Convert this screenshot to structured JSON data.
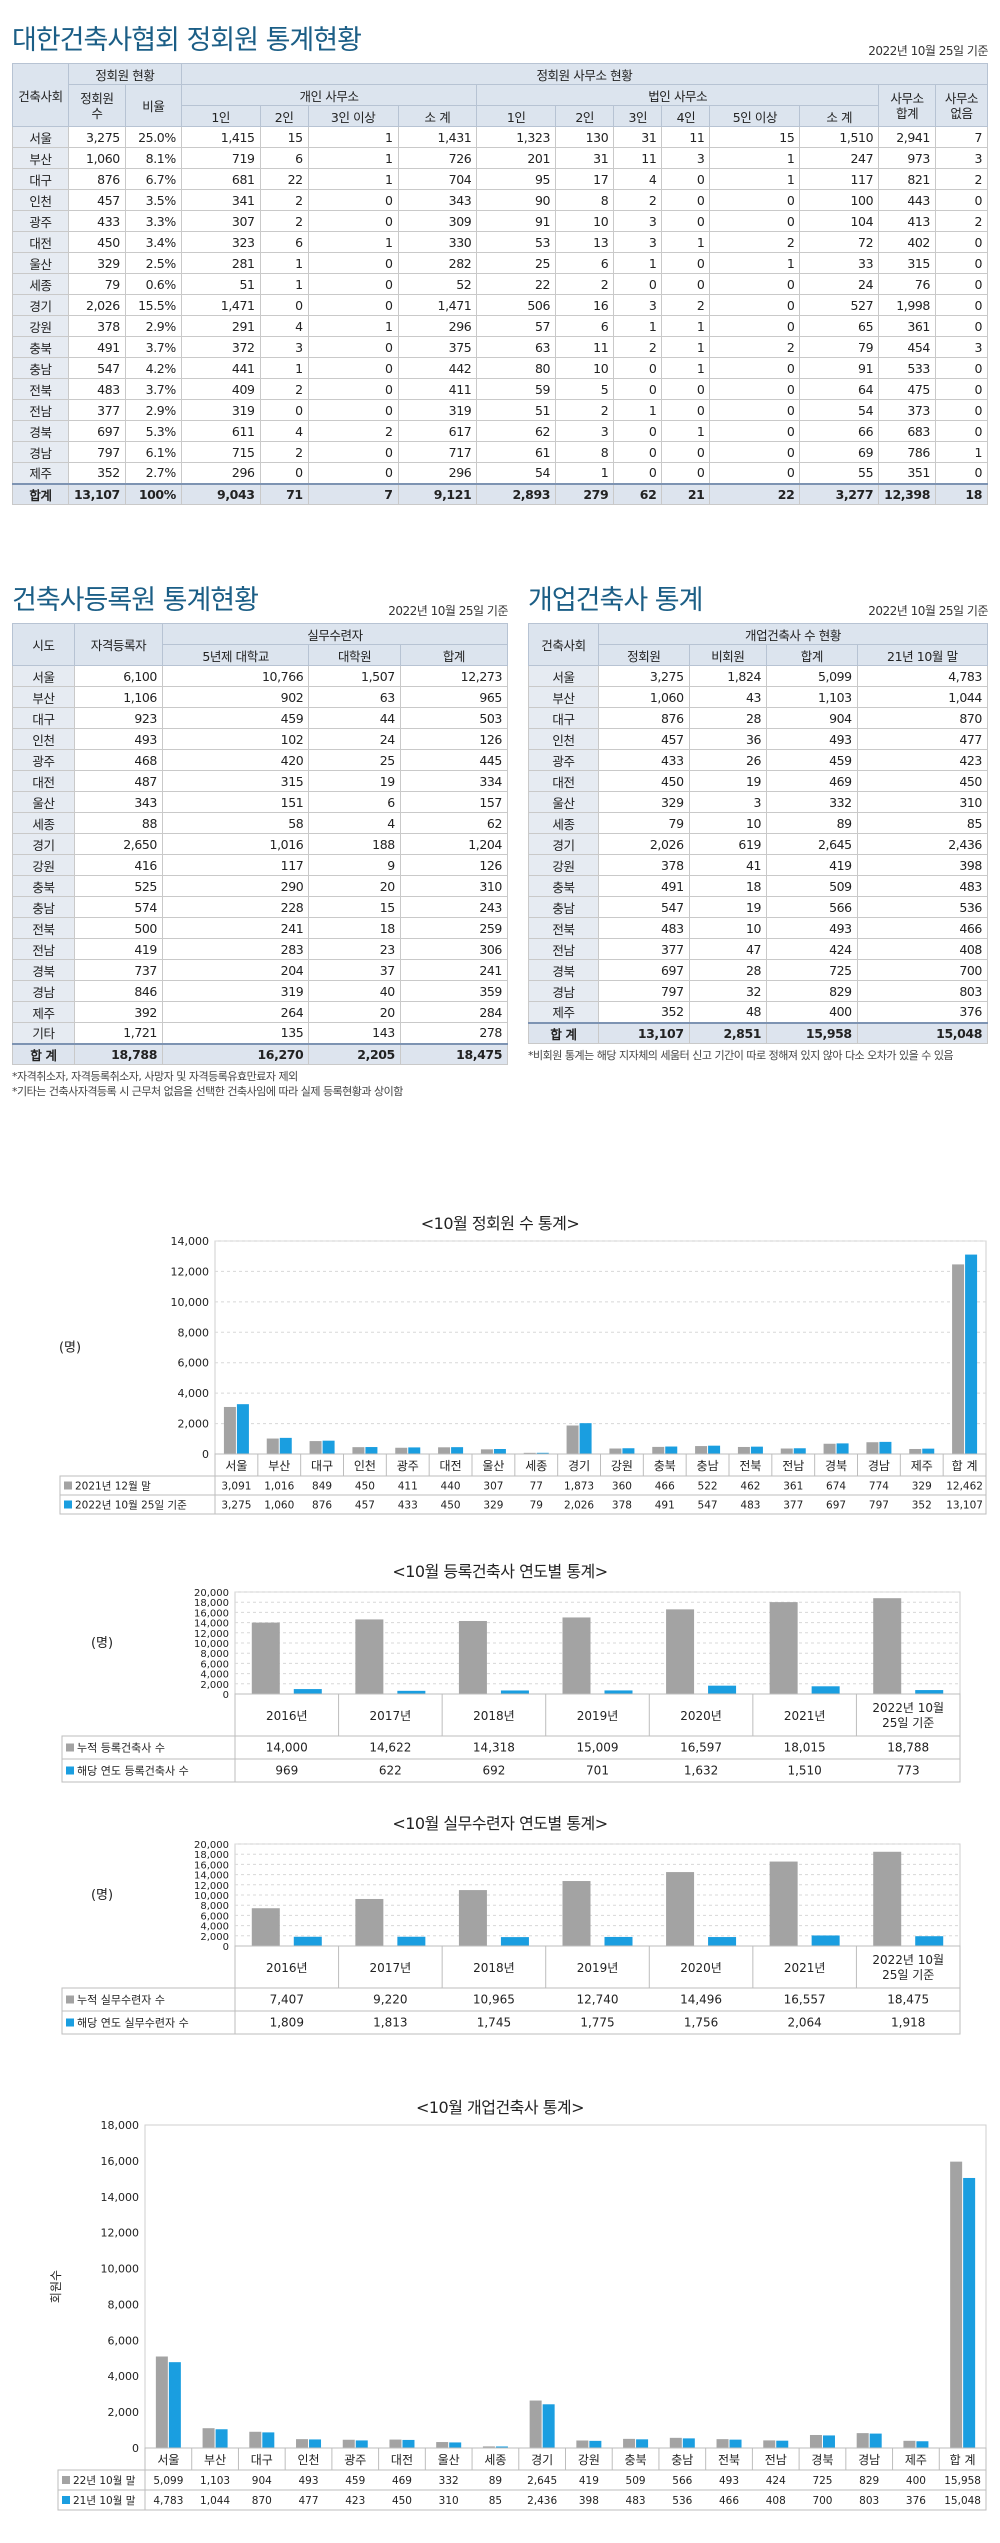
{
  "t1": {
    "title": "대한건축사협회 정회원 통계현황",
    "date": "2022년 10월 25일 기준",
    "h_region": "건축사회",
    "h_member": "정회원 현황",
    "h_count": "정회원 수",
    "h_ratio": "비율",
    "h_office": "정회원 사무소 현황",
    "h_personal": "개인 사무소",
    "h_corp": "법인 사무소",
    "h_p": [
      "1인",
      "2인",
      "3인 이상",
      "소 계"
    ],
    "h_c": [
      "1인",
      "2인",
      "3인",
      "4인",
      "5인 이상",
      "소 계"
    ],
    "h_total": "사무소 합계",
    "h_none": "사무소 없음",
    "rows": [
      [
        "서울",
        "3,275",
        "25.0%",
        "1,415",
        "15",
        "1",
        "1,431",
        "1,323",
        "130",
        "31",
        "11",
        "15",
        "1,510",
        "2,941",
        "7"
      ],
      [
        "부산",
        "1,060",
        "8.1%",
        "719",
        "6",
        "1",
        "726",
        "201",
        "31",
        "11",
        "3",
        "1",
        "247",
        "973",
        "3"
      ],
      [
        "대구",
        "876",
        "6.7%",
        "681",
        "22",
        "1",
        "704",
        "95",
        "17",
        "4",
        "0",
        "1",
        "117",
        "821",
        "2"
      ],
      [
        "인천",
        "457",
        "3.5%",
        "341",
        "2",
        "0",
        "343",
        "90",
        "8",
        "2",
        "0",
        "0",
        "100",
        "443",
        "0"
      ],
      [
        "광주",
        "433",
        "3.3%",
        "307",
        "2",
        "0",
        "309",
        "91",
        "10",
        "3",
        "0",
        "0",
        "104",
        "413",
        "2"
      ],
      [
        "대전",
        "450",
        "3.4%",
        "323",
        "6",
        "1",
        "330",
        "53",
        "13",
        "3",
        "1",
        "2",
        "72",
        "402",
        "0"
      ],
      [
        "울산",
        "329",
        "2.5%",
        "281",
        "1",
        "0",
        "282",
        "25",
        "6",
        "1",
        "0",
        "1",
        "33",
        "315",
        "0"
      ],
      [
        "세종",
        "79",
        "0.6%",
        "51",
        "1",
        "0",
        "52",
        "22",
        "2",
        "0",
        "0",
        "0",
        "24",
        "76",
        "0"
      ],
      [
        "경기",
        "2,026",
        "15.5%",
        "1,471",
        "0",
        "0",
        "1,471",
        "506",
        "16",
        "3",
        "2",
        "0",
        "527",
        "1,998",
        "0"
      ],
      [
        "강원",
        "378",
        "2.9%",
        "291",
        "4",
        "1",
        "296",
        "57",
        "6",
        "1",
        "1",
        "0",
        "65",
        "361",
        "0"
      ],
      [
        "충북",
        "491",
        "3.7%",
        "372",
        "3",
        "0",
        "375",
        "63",
        "11",
        "2",
        "1",
        "2",
        "79",
        "454",
        "3"
      ],
      [
        "충남",
        "547",
        "4.2%",
        "441",
        "1",
        "0",
        "442",
        "80",
        "10",
        "0",
        "1",
        "0",
        "91",
        "533",
        "0"
      ],
      [
        "전북",
        "483",
        "3.7%",
        "409",
        "2",
        "0",
        "411",
        "59",
        "5",
        "0",
        "0",
        "0",
        "64",
        "475",
        "0"
      ],
      [
        "전남",
        "377",
        "2.9%",
        "319",
        "0",
        "0",
        "319",
        "51",
        "2",
        "1",
        "0",
        "0",
        "54",
        "373",
        "0"
      ],
      [
        "경북",
        "697",
        "5.3%",
        "611",
        "4",
        "2",
        "617",
        "62",
        "3",
        "0",
        "1",
        "0",
        "66",
        "683",
        "0"
      ],
      [
        "경남",
        "797",
        "6.1%",
        "715",
        "2",
        "0",
        "717",
        "61",
        "8",
        "0",
        "0",
        "0",
        "69",
        "786",
        "1"
      ],
      [
        "제주",
        "352",
        "2.7%",
        "296",
        "0",
        "0",
        "296",
        "54",
        "1",
        "0",
        "0",
        "0",
        "55",
        "351",
        "0"
      ]
    ],
    "total": [
      "합계",
      "13,107",
      "100%",
      "9,043",
      "71",
      "7",
      "9,121",
      "2,893",
      "279",
      "62",
      "21",
      "22",
      "3,277",
      "12,398",
      "18"
    ]
  },
  "t2": {
    "title": "건축사등록원 통계현황",
    "date": "2022년 10월 25일 기준",
    "h_region": "시도",
    "h_reg": "자격등록자",
    "h_train": "실무수련자",
    "h_sub": [
      "5년제 대학교",
      "대학원",
      "합계"
    ],
    "rows": [
      [
        "서울",
        "6,100",
        "10,766",
        "1,507",
        "12,273"
      ],
      [
        "부산",
        "1,106",
        "902",
        "63",
        "965"
      ],
      [
        "대구",
        "923",
        "459",
        "44",
        "503"
      ],
      [
        "인천",
        "493",
        "102",
        "24",
        "126"
      ],
      [
        "광주",
        "468",
        "420",
        "25",
        "445"
      ],
      [
        "대전",
        "487",
        "315",
        "19",
        "334"
      ],
      [
        "울산",
        "343",
        "151",
        "6",
        "157"
      ],
      [
        "세종",
        "88",
        "58",
        "4",
        "62"
      ],
      [
        "경기",
        "2,650",
        "1,016",
        "188",
        "1,204"
      ],
      [
        "강원",
        "416",
        "117",
        "9",
        "126"
      ],
      [
        "충북",
        "525",
        "290",
        "20",
        "310"
      ],
      [
        "충남",
        "574",
        "228",
        "15",
        "243"
      ],
      [
        "전북",
        "500",
        "241",
        "18",
        "259"
      ],
      [
        "전남",
        "419",
        "283",
        "23",
        "306"
      ],
      [
        "경북",
        "737",
        "204",
        "37",
        "241"
      ],
      [
        "경남",
        "846",
        "319",
        "40",
        "359"
      ],
      [
        "제주",
        "392",
        "264",
        "20",
        "284"
      ],
      [
        "기타",
        "1,721",
        "135",
        "143",
        "278"
      ]
    ],
    "total": [
      "합 계",
      "18,788",
      "16,270",
      "2,205",
      "18,475"
    ],
    "notes": [
      "*자격취소자, 자격등록취소자, 사망자 및 자격등록유효만료자 제외",
      "*기타는 건축사자격등록 시 근무처 없음을 선택한 건축사임에 따라 실제 등록현황과 상이함"
    ]
  },
  "t3": {
    "title": "개업건축사 통계",
    "date": "2022년 10월 25일 기준",
    "h_region": "건축사회",
    "h_group": "개업건축사 수 현황",
    "h_sub": [
      "정회원",
      "비회원",
      "합계",
      "21년 10월 말"
    ],
    "rows": [
      [
        "서울",
        "3,275",
        "1,824",
        "5,099",
        "4,783"
      ],
      [
        "부산",
        "1,060",
        "43",
        "1,103",
        "1,044"
      ],
      [
        "대구",
        "876",
        "28",
        "904",
        "870"
      ],
      [
        "인천",
        "457",
        "36",
        "493",
        "477"
      ],
      [
        "광주",
        "433",
        "26",
        "459",
        "423"
      ],
      [
        "대전",
        "450",
        "19",
        "469",
        "450"
      ],
      [
        "울산",
        "329",
        "3",
        "332",
        "310"
      ],
      [
        "세종",
        "79",
        "10",
        "89",
        "85"
      ],
      [
        "경기",
        "2,026",
        "619",
        "2,645",
        "2,436"
      ],
      [
        "강원",
        "378",
        "41",
        "419",
        "398"
      ],
      [
        "충북",
        "491",
        "18",
        "509",
        "483"
      ],
      [
        "충남",
        "547",
        "19",
        "566",
        "536"
      ],
      [
        "전북",
        "483",
        "10",
        "493",
        "466"
      ],
      [
        "전남",
        "377",
        "47",
        "424",
        "408"
      ],
      [
        "경북",
        "697",
        "28",
        "725",
        "700"
      ],
      [
        "경남",
        "797",
        "32",
        "829",
        "803"
      ],
      [
        "제주",
        "352",
        "48",
        "400",
        "376"
      ]
    ],
    "total": [
      "합 계",
      "13,107",
      "2,851",
      "15,958",
      "15,048"
    ],
    "note": "*비회원 통계는 해당 지자체의 세움터 신고 기간이 따로 정해져 있지 않아 다소 오차가 있을 수 있음"
  },
  "chart_data": [
    {
      "type": "bar",
      "title": "<10월 정회원 수 통계>",
      "ylabel": "(명)",
      "ylim": [
        0,
        14000
      ],
      "yticks": [
        0,
        2000,
        4000,
        6000,
        8000,
        10000,
        12000,
        14000
      ],
      "grid": true,
      "categories": [
        "서울",
        "부산",
        "대구",
        "인천",
        "광주",
        "대전",
        "울산",
        "세종",
        "경기",
        "강원",
        "충북",
        "충남",
        "전북",
        "전남",
        "경북",
        "경남",
        "제주",
        "합 계"
      ],
      "series": [
        {
          "name": "2021년 12월 말",
          "color": "#a3a3a3",
          "values": [
            3091,
            1016,
            849,
            450,
            411,
            440,
            307,
            77,
            1873,
            360,
            466,
            522,
            462,
            361,
            674,
            774,
            329,
            12462
          ]
        },
        {
          "name": "2022년 10월 25일 기준",
          "color": "#1a9ee0",
          "values": [
            3275,
            1060,
            876,
            457,
            433,
            450,
            329,
            79,
            2026,
            378,
            491,
            547,
            483,
            377,
            697,
            797,
            352,
            13107
          ]
        }
      ]
    },
    {
      "type": "bar",
      "title": "<10월 등록건축사 연도별 통계>",
      "ylabel": "(명)",
      "ylim": [
        0,
        20000
      ],
      "yticks": [
        0,
        2000,
        4000,
        6000,
        8000,
        10000,
        12000,
        14000,
        16000,
        18000,
        20000
      ],
      "grid": true,
      "categories": [
        "2016년",
        "2017년",
        "2018년",
        "2019년",
        "2020년",
        "2021년",
        "2022년 10월 25일 기준"
      ],
      "series": [
        {
          "name": "누적 등록건축사 수",
          "color": "#a3a3a3",
          "values": [
            14000,
            14622,
            14318,
            15009,
            16597,
            18015,
            18788
          ]
        },
        {
          "name": "해당 연도 등록건축사 수",
          "color": "#1a9ee0",
          "values": [
            969,
            622,
            692,
            701,
            1632,
            1510,
            773
          ]
        }
      ]
    },
    {
      "type": "bar",
      "title": "<10월 실무수련자 연도별 통계>",
      "ylabel": "(명)",
      "ylim": [
        0,
        20000
      ],
      "yticks": [
        0,
        2000,
        4000,
        6000,
        8000,
        10000,
        12000,
        14000,
        16000,
        18000,
        20000
      ],
      "grid": true,
      "categories": [
        "2016년",
        "2017년",
        "2018년",
        "2019년",
        "2020년",
        "2021년",
        "2022년 10월 25일 기준"
      ],
      "series": [
        {
          "name": "누적 실무수련자 수",
          "color": "#a3a3a3",
          "values": [
            7407,
            9220,
            10965,
            12740,
            14496,
            16557,
            18475
          ]
        },
        {
          "name": "해당 연도 실무수련자 수",
          "color": "#1a9ee0",
          "values": [
            1809,
            1813,
            1745,
            1775,
            1756,
            2064,
            1918
          ]
        }
      ]
    },
    {
      "type": "bar",
      "title": "<10월 개업건축사 통계>",
      "ylabel": "회원수",
      "ylim": [
        0,
        18000
      ],
      "yticks": [
        0,
        2000,
        4000,
        6000,
        8000,
        10000,
        12000,
        14000,
        16000,
        18000
      ],
      "grid": false,
      "categories": [
        "서울",
        "부산",
        "대구",
        "인천",
        "광주",
        "대전",
        "울산",
        "세종",
        "경기",
        "강원",
        "충북",
        "충남",
        "전북",
        "전남",
        "경북",
        "경남",
        "제주",
        "합 계"
      ],
      "series": [
        {
          "name": "22년 10월 말",
          "color": "#a3a3a3",
          "values": [
            5099,
            1103,
            904,
            493,
            459,
            469,
            332,
            89,
            2645,
            419,
            509,
            566,
            493,
            424,
            725,
            829,
            400,
            15958
          ]
        },
        {
          "name": "21년 10월 말",
          "color": "#1a9ee0",
          "values": [
            4783,
            1044,
            870,
            477,
            423,
            450,
            310,
            85,
            2436,
            398,
            483,
            536,
            466,
            408,
            700,
            803,
            376,
            15048
          ]
        }
      ]
    }
  ]
}
